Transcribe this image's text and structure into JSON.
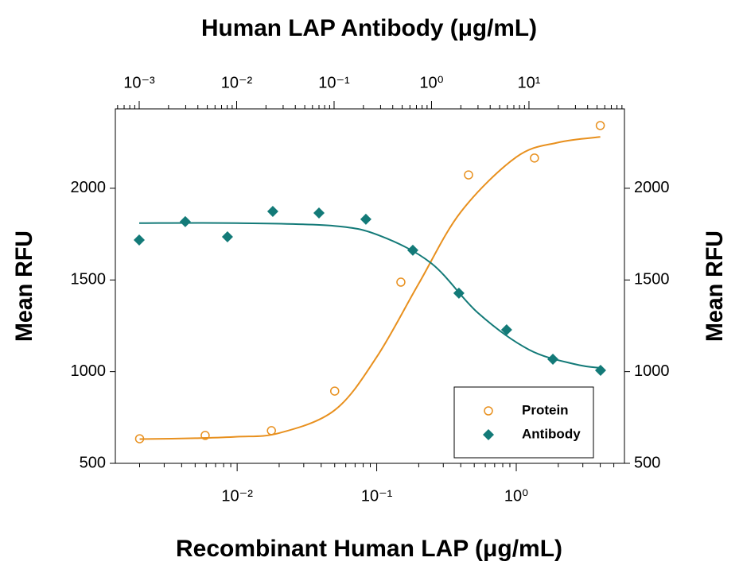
{
  "chart_data": {
    "type": "scatter",
    "xlabel": "Recombinant Human LAP (μg/mL)",
    "x2label": "Human LAP Antibody (μg/mL)",
    "ylabel": "Mean RFU",
    "y2label": "Mean RFU",
    "xlog": true,
    "x2log": true,
    "xlim": [
      0.00134,
      5.96
    ],
    "xticks": [
      {
        "value": 0.01,
        "label": "10⁻²"
      },
      {
        "value": 0.1,
        "label": "10⁻¹"
      },
      {
        "value": 1,
        "label": "10⁰"
      }
    ],
    "x2lim": [
      0.000569,
      95.5
    ],
    "x2ticks": [
      {
        "value": 0.001,
        "label": "10⁻³"
      },
      {
        "value": 0.01,
        "label": "10⁻²"
      },
      {
        "value": 0.1,
        "label": "10⁻¹"
      },
      {
        "value": 1,
        "label": "10⁰"
      },
      {
        "value": 10,
        "label": "10¹"
      }
    ],
    "ylim": [
      500,
      2433
    ],
    "yticks": [
      500,
      1000,
      1500,
      2000
    ],
    "y2lim": [
      500,
      2433
    ],
    "y2ticks": [
      500,
      1000,
      1500,
      2000
    ],
    "legend": "lower right",
    "series": [
      {
        "name": "Protein",
        "color": "#e8901e",
        "marker": "open-circle",
        "xaxis": "x",
        "x": [
          0.002,
          0.0059,
          0.0176,
          0.05,
          0.149,
          0.455,
          1.35,
          4.0
        ],
        "values": [
          634,
          652,
          678,
          894,
          1488,
          2073,
          2165,
          2342
        ],
        "fit": {
          "x": [
            0.002,
            0.005,
            0.01,
            0.02,
            0.05,
            0.1,
            0.2,
            0.4,
            1,
            2,
            4
          ],
          "values": [
            632,
            637,
            645,
            665,
            790,
            1080,
            1480,
            1870,
            2170,
            2250,
            2280
          ]
        }
      },
      {
        "name": "Antibody",
        "color": "#137a78",
        "marker": "diamond",
        "xaxis": "x2",
        "axis": "y2",
        "x": [
          0.001,
          0.00297,
          0.00805,
          0.0235,
          0.07,
          0.212,
          0.643,
          1.91,
          5.9,
          17.6,
          54.3
        ],
        "values": [
          1718,
          1818,
          1735,
          1874,
          1865,
          1831,
          1662,
          1428,
          1228,
          1068,
          1007
        ],
        "fit": {
          "x": [
            0.001,
            0.01,
            0.1,
            0.3,
            1,
            3,
            10,
            30,
            55
          ],
          "values": [
            1810,
            1810,
            1795,
            1740,
            1590,
            1320,
            1120,
            1040,
            1020
          ]
        }
      }
    ]
  }
}
